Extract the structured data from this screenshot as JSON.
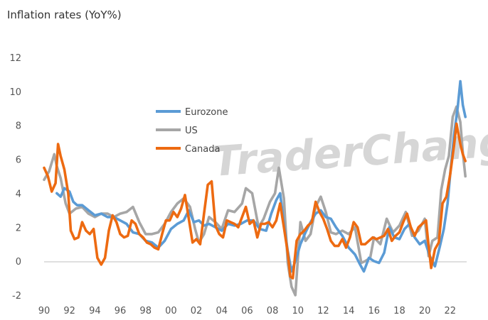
{
  "watermark": "TraderChange.com",
  "chart_data": {
    "type": "line",
    "title": "Inflation rates (YoY%)",
    "xlabel": "",
    "ylabel": "",
    "xlim": [
      1990,
      2023.3
    ],
    "ylim": [
      -2.2,
      12
    ],
    "yticks": [
      -2,
      0,
      2,
      4,
      6,
      8,
      10,
      12
    ],
    "xticks": [
      1990,
      1992,
      1994,
      1996,
      1998,
      2000,
      2002,
      2004,
      2006,
      2008,
      2010,
      2012,
      2014,
      2016,
      2018,
      2020,
      2022
    ],
    "xtick_labels": [
      "90",
      "92",
      "94",
      "96",
      "98",
      "00",
      "02",
      "04",
      "06",
      "08",
      "10",
      "12",
      "14",
      "16",
      "18",
      "20",
      "22"
    ],
    "grid": false,
    "legend_position": "upper-left",
    "series": [
      {
        "name": "Eurozone",
        "color": "#5b9bd5",
        "x": [
          1991.0,
          1991.3,
          1991.6,
          1992.0,
          1992.3,
          1992.6,
          1993.0,
          1993.5,
          1994.0,
          1994.5,
          1995.0,
          1995.5,
          1996.0,
          1996.5,
          1997.0,
          1997.5,
          1998.0,
          1998.5,
          1999.0,
          1999.5,
          2000.0,
          2000.5,
          2001.0,
          2001.4,
          2001.8,
          2002.2,
          2002.6,
          2003.0,
          2003.5,
          2004.0,
          2004.5,
          2005.0,
          2005.5,
          2006.0,
          2006.5,
          2007.0,
          2007.5,
          2007.9,
          2008.3,
          2008.6,
          2008.9,
          2009.2,
          2009.5,
          2009.8,
          2010.2,
          2010.6,
          2011.0,
          2011.4,
          2011.8,
          2012.2,
          2012.6,
          2013.0,
          2013.5,
          2014.0,
          2014.5,
          2014.9,
          2015.2,
          2015.6,
          2016.0,
          2016.4,
          2016.8,
          2017.2,
          2017.6,
          2018.0,
          2018.4,
          2018.8,
          2019.2,
          2019.6,
          2020.0,
          2020.4,
          2020.8,
          2021.2,
          2021.5,
          2021.8,
          2022.0,
          2022.3,
          2022.6,
          2022.8,
          2023.0,
          2023.2
        ],
        "values": [
          4.0,
          3.8,
          4.3,
          4.1,
          3.5,
          3.3,
          3.3,
          3.0,
          2.7,
          2.8,
          2.6,
          2.6,
          2.4,
          2.2,
          1.7,
          1.6,
          1.2,
          1.1,
          0.8,
          1.2,
          1.9,
          2.2,
          2.4,
          3.0,
          2.3,
          2.4,
          2.1,
          2.2,
          2.0,
          1.8,
          2.2,
          2.1,
          2.2,
          2.4,
          2.4,
          1.9,
          1.8,
          2.8,
          3.6,
          4.0,
          2.2,
          0.6,
          -0.6,
          0.0,
          1.0,
          1.7,
          2.3,
          2.8,
          3.0,
          2.6,
          2.5,
          2.0,
          1.5,
          0.8,
          0.4,
          -0.2,
          -0.6,
          0.2,
          0.0,
          -0.1,
          0.5,
          2.0,
          1.4,
          1.3,
          1.9,
          2.2,
          1.4,
          1.0,
          1.2,
          0.3,
          -0.3,
          0.9,
          1.9,
          3.4,
          5.1,
          7.4,
          9.1,
          10.6,
          9.2,
          8.5
        ]
      },
      {
        "name": "US",
        "color": "#a6a6a6",
        "x": [
          1990.0,
          1990.4,
          1990.8,
          1991.0,
          1991.3,
          1991.7,
          1992.0,
          1992.5,
          1993.0,
          1993.5,
          1994.0,
          1994.5,
          1995.0,
          1995.5,
          1996.0,
          1996.5,
          1997.0,
          1997.5,
          1998.0,
          1998.5,
          1999.0,
          1999.5,
          2000.0,
          2000.5,
          2001.0,
          2001.5,
          2001.9,
          2002.2,
          2002.6,
          2003.0,
          2003.5,
          2004.0,
          2004.5,
          2005.0,
          2005.6,
          2005.9,
          2006.4,
          2006.9,
          2007.3,
          2007.8,
          2008.2,
          2008.5,
          2008.9,
          2009.2,
          2009.5,
          2009.8,
          2010.2,
          2010.6,
          2011.0,
          2011.4,
          2011.8,
          2012.2,
          2012.6,
          2013.0,
          2013.5,
          2014.0,
          2014.5,
          2015.0,
          2015.3,
          2015.7,
          2016.0,
          2016.5,
          2017.0,
          2017.5,
          2018.0,
          2018.5,
          2019.0,
          2019.5,
          2020.0,
          2020.3,
          2020.6,
          2021.0,
          2021.3,
          2021.6,
          2021.9,
          2022.2,
          2022.5,
          2022.8,
          2023.0,
          2023.2
        ],
        "values": [
          4.8,
          5.3,
          6.3,
          5.6,
          4.9,
          3.4,
          2.8,
          3.1,
          3.2,
          2.8,
          2.6,
          2.8,
          2.8,
          2.6,
          2.8,
          2.9,
          3.2,
          2.3,
          1.6,
          1.6,
          1.7,
          2.2,
          2.9,
          3.4,
          3.7,
          3.2,
          1.9,
          1.1,
          1.6,
          2.6,
          2.3,
          1.9,
          3.0,
          2.9,
          3.4,
          4.3,
          4.0,
          2.0,
          2.5,
          3.5,
          4.0,
          5.5,
          3.7,
          -0.1,
          -1.5,
          -2.0,
          2.3,
          1.2,
          1.6,
          3.2,
          3.8,
          2.9,
          1.7,
          1.6,
          1.8,
          1.6,
          2.0,
          -0.1,
          0.0,
          0.2,
          1.4,
          1.0,
          2.5,
          1.7,
          2.1,
          2.9,
          1.5,
          1.8,
          2.5,
          0.3,
          1.2,
          1.4,
          4.2,
          5.4,
          6.2,
          8.5,
          9.1,
          8.2,
          6.4,
          5.0
        ]
      },
      {
        "name": "Canada",
        "color": "#ed6a11",
        "x": [
          1990.0,
          1990.3,
          1990.6,
          1990.9,
          1991.1,
          1991.3,
          1991.6,
          1991.9,
          1992.1,
          1992.4,
          1992.7,
          1993.0,
          1993.3,
          1993.6,
          1993.9,
          1994.2,
          1994.5,
          1994.8,
          1995.1,
          1995.4,
          1995.7,
          1996.0,
          1996.3,
          1996.6,
          1996.9,
          1997.2,
          1997.5,
          1997.8,
          1998.1,
          1998.4,
          1998.7,
          1999.0,
          1999.3,
          1999.6,
          1999.9,
          2000.2,
          2000.5,
          2000.8,
          2001.1,
          2001.4,
          2001.7,
          2002.0,
          2002.3,
          2002.6,
          2002.9,
          2003.2,
          2003.5,
          2003.8,
          2004.1,
          2004.4,
          2004.7,
          2005.0,
          2005.3,
          2005.6,
          2005.9,
          2006.2,
          2006.5,
          2006.8,
          2007.1,
          2007.4,
          2007.7,
          2008.0,
          2008.3,
          2008.6,
          2008.9,
          2009.2,
          2009.4,
          2009.6,
          2009.9,
          2010.2,
          2010.5,
          2010.8,
          2011.1,
          2011.4,
          2011.7,
          2012.0,
          2012.3,
          2012.6,
          2012.9,
          2013.2,
          2013.5,
          2013.8,
          2014.1,
          2014.4,
          2014.7,
          2015.0,
          2015.3,
          2015.6,
          2015.9,
          2016.2,
          2016.5,
          2016.8,
          2017.1,
          2017.4,
          2017.7,
          2018.0,
          2018.3,
          2018.6,
          2018.9,
          2019.2,
          2019.5,
          2019.8,
          2020.1,
          2020.3,
          2020.5,
          2020.8,
          2021.1,
          2021.4,
          2021.7,
          2022.0,
          2022.3,
          2022.5,
          2022.8,
          2023.0,
          2023.2
        ],
        "values": [
          5.5,
          5.0,
          4.1,
          4.6,
          6.9,
          6.2,
          5.4,
          4.0,
          1.8,
          1.3,
          1.4,
          2.3,
          1.8,
          1.6,
          1.9,
          0.2,
          -0.2,
          0.2,
          1.8,
          2.7,
          2.3,
          1.6,
          1.4,
          1.5,
          2.4,
          2.2,
          1.6,
          1.4,
          1.1,
          1.0,
          0.8,
          0.7,
          1.6,
          2.4,
          2.4,
          2.9,
          2.6,
          3.1,
          3.9,
          2.5,
          1.1,
          1.3,
          1.0,
          2.8,
          4.5,
          4.7,
          2.1,
          1.6,
          1.4,
          2.4,
          2.3,
          2.2,
          2.0,
          2.6,
          3.2,
          2.2,
          2.4,
          1.4,
          2.2,
          2.2,
          2.3,
          2.0,
          2.4,
          3.4,
          2.0,
          0.5,
          -0.9,
          -1.0,
          1.2,
          1.6,
          1.8,
          2.1,
          2.3,
          3.5,
          2.9,
          2.5,
          1.9,
          1.2,
          0.9,
          0.9,
          1.3,
          0.8,
          1.4,
          2.3,
          2.0,
          1.0,
          1.0,
          1.2,
          1.4,
          1.3,
          1.4,
          1.5,
          1.9,
          1.2,
          1.5,
          1.7,
          2.3,
          2.8,
          2.0,
          1.5,
          2.0,
          2.2,
          2.4,
          0.9,
          -0.4,
          0.7,
          1.1,
          3.4,
          3.8,
          5.1,
          6.8,
          8.1,
          6.9,
          6.3,
          5.9
        ]
      }
    ]
  }
}
